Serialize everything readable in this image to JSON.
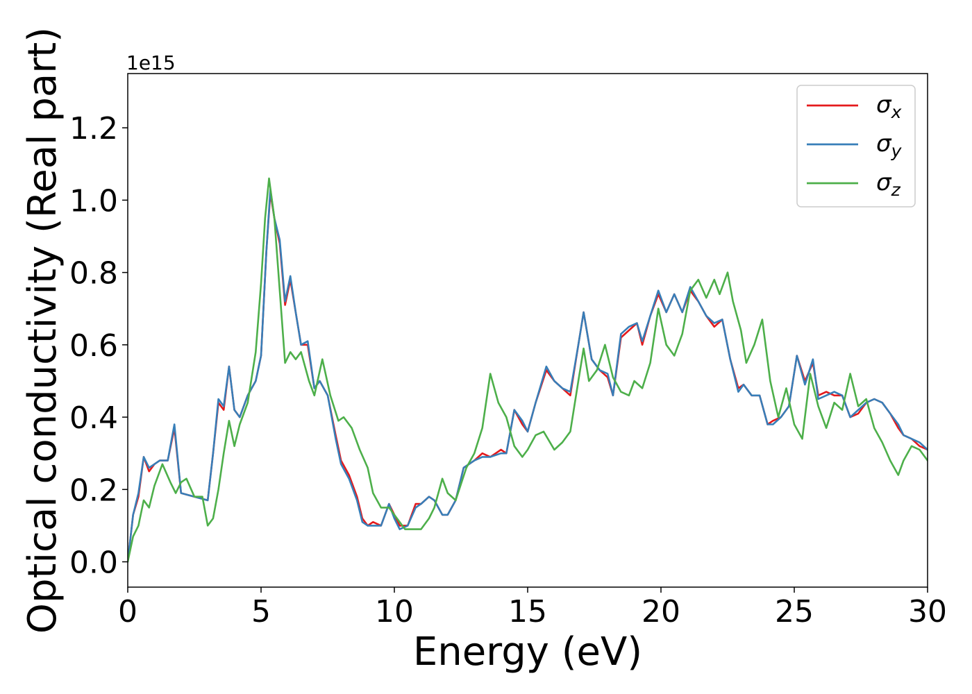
{
  "chart_data": {
    "type": "line",
    "xlabel": "Energy (eV)",
    "ylabel": "Optical conductivity (Real part)",
    "y_offset_label": "1e15",
    "xlim": [
      0,
      30
    ],
    "ylim": [
      -0.07,
      1.35
    ],
    "xticks": [
      0,
      5,
      10,
      15,
      20,
      25,
      30
    ],
    "xtick_labels": [
      "0",
      "5",
      "10",
      "15",
      "20",
      "25",
      "30"
    ],
    "yticks": [
      0.0,
      0.2,
      0.4,
      0.6,
      0.8,
      1.0,
      1.2
    ],
    "ytick_labels": [
      "0.0",
      "0.2",
      "0.4",
      "0.6",
      "0.8",
      "1.0",
      "1.2"
    ],
    "grid": false,
    "legend_position": "top-right",
    "series": [
      {
        "name": "σx",
        "legend_base": "σ",
        "legend_sub": "x",
        "color": "#e41a1c",
        "x": [
          0,
          0.2,
          0.4,
          0.6,
          0.8,
          1.0,
          1.2,
          1.5,
          1.75,
          2.0,
          2.5,
          3.0,
          3.2,
          3.4,
          3.6,
          3.8,
          4.0,
          4.2,
          4.5,
          4.8,
          5.0,
          5.2,
          5.35,
          5.5,
          5.7,
          5.9,
          6.1,
          6.3,
          6.5,
          6.75,
          7.0,
          7.2,
          7.5,
          7.8,
          8.0,
          8.3,
          8.6,
          8.8,
          9.0,
          9.2,
          9.5,
          9.8,
          10.0,
          10.2,
          10.5,
          10.8,
          11.0,
          11.3,
          11.5,
          11.8,
          12.0,
          12.3,
          12.6,
          13.0,
          13.3,
          13.6,
          14.0,
          14.2,
          14.5,
          14.8,
          15.0,
          15.3,
          15.7,
          16.0,
          16.3,
          16.6,
          16.9,
          17.1,
          17.4,
          17.7,
          18.0,
          18.2,
          18.5,
          18.8,
          19.1,
          19.3,
          19.6,
          19.9,
          20.2,
          20.5,
          20.8,
          21.1,
          21.4,
          21.7,
          22.0,
          22.3,
          22.6,
          22.9,
          23.1,
          23.4,
          23.7,
          24.0,
          24.2,
          24.5,
          24.8,
          25.1,
          25.4,
          25.7,
          25.9,
          26.2,
          26.5,
          26.8,
          27.1,
          27.4,
          27.7,
          28.0,
          28.3,
          28.6,
          28.9,
          29.1,
          29.4,
          29.7,
          30.0
        ],
        "y": [
          0.0,
          0.13,
          0.18,
          0.29,
          0.25,
          0.27,
          0.28,
          0.28,
          0.37,
          0.19,
          0.18,
          0.17,
          0.3,
          0.44,
          0.42,
          0.54,
          0.42,
          0.4,
          0.46,
          0.5,
          0.57,
          0.86,
          1.02,
          0.95,
          0.88,
          0.71,
          0.78,
          0.69,
          0.6,
          0.6,
          0.48,
          0.5,
          0.46,
          0.35,
          0.28,
          0.24,
          0.18,
          0.12,
          0.1,
          0.11,
          0.1,
          0.16,
          0.13,
          0.1,
          0.1,
          0.16,
          0.16,
          0.18,
          0.17,
          0.13,
          0.13,
          0.17,
          0.26,
          0.28,
          0.3,
          0.29,
          0.31,
          0.3,
          0.42,
          0.38,
          0.36,
          0.44,
          0.53,
          0.5,
          0.48,
          0.46,
          0.6,
          0.69,
          0.56,
          0.53,
          0.51,
          0.46,
          0.62,
          0.64,
          0.66,
          0.6,
          0.68,
          0.74,
          0.69,
          0.74,
          0.69,
          0.75,
          0.72,
          0.68,
          0.65,
          0.67,
          0.56,
          0.48,
          0.49,
          0.46,
          0.46,
          0.38,
          0.39,
          0.4,
          0.43,
          0.57,
          0.5,
          0.55,
          0.46,
          0.47,
          0.46,
          0.46,
          0.4,
          0.41,
          0.44,
          0.45,
          0.44,
          0.41,
          0.37,
          0.35,
          0.34,
          0.32,
          0.31
        ]
      },
      {
        "name": "σy",
        "legend_base": "σ",
        "legend_sub": "y",
        "color": "#377eb8",
        "x": [
          0,
          0.2,
          0.4,
          0.6,
          0.8,
          1.0,
          1.2,
          1.5,
          1.75,
          2.0,
          2.5,
          3.0,
          3.2,
          3.4,
          3.6,
          3.8,
          4.0,
          4.2,
          4.5,
          4.8,
          5.0,
          5.2,
          5.35,
          5.5,
          5.7,
          5.9,
          6.1,
          6.3,
          6.5,
          6.75,
          7.0,
          7.2,
          7.5,
          7.8,
          8.0,
          8.3,
          8.6,
          8.8,
          9.0,
          9.2,
          9.5,
          9.8,
          10.0,
          10.2,
          10.5,
          10.8,
          11.0,
          11.3,
          11.5,
          11.8,
          12.0,
          12.3,
          12.6,
          13.0,
          13.3,
          13.6,
          14.0,
          14.2,
          14.5,
          14.8,
          15.0,
          15.3,
          15.7,
          16.0,
          16.3,
          16.6,
          16.9,
          17.1,
          17.4,
          17.7,
          18.0,
          18.2,
          18.5,
          18.8,
          19.1,
          19.3,
          19.6,
          19.9,
          20.2,
          20.5,
          20.8,
          21.1,
          21.4,
          21.7,
          22.0,
          22.3,
          22.6,
          22.9,
          23.1,
          23.4,
          23.7,
          24.0,
          24.2,
          24.5,
          24.8,
          25.1,
          25.4,
          25.7,
          25.9,
          26.2,
          26.5,
          26.8,
          27.1,
          27.4,
          27.7,
          28.0,
          28.3,
          28.6,
          28.9,
          29.1,
          29.4,
          29.7,
          30.0
        ],
        "y": [
          0.0,
          0.13,
          0.19,
          0.29,
          0.26,
          0.27,
          0.28,
          0.28,
          0.38,
          0.19,
          0.18,
          0.17,
          0.3,
          0.45,
          0.43,
          0.54,
          0.42,
          0.4,
          0.46,
          0.5,
          0.57,
          0.86,
          1.03,
          0.95,
          0.89,
          0.72,
          0.79,
          0.69,
          0.6,
          0.61,
          0.48,
          0.5,
          0.46,
          0.34,
          0.27,
          0.23,
          0.17,
          0.11,
          0.1,
          0.1,
          0.1,
          0.16,
          0.12,
          0.09,
          0.1,
          0.15,
          0.16,
          0.18,
          0.17,
          0.13,
          0.13,
          0.17,
          0.26,
          0.28,
          0.29,
          0.29,
          0.3,
          0.3,
          0.42,
          0.39,
          0.36,
          0.44,
          0.54,
          0.5,
          0.48,
          0.47,
          0.6,
          0.69,
          0.56,
          0.53,
          0.52,
          0.46,
          0.63,
          0.65,
          0.66,
          0.61,
          0.68,
          0.75,
          0.69,
          0.74,
          0.69,
          0.76,
          0.72,
          0.68,
          0.66,
          0.67,
          0.56,
          0.47,
          0.49,
          0.46,
          0.46,
          0.38,
          0.38,
          0.4,
          0.43,
          0.57,
          0.49,
          0.56,
          0.45,
          0.46,
          0.47,
          0.46,
          0.4,
          0.42,
          0.44,
          0.45,
          0.44,
          0.41,
          0.38,
          0.35,
          0.34,
          0.33,
          0.31
        ]
      },
      {
        "name": "σz",
        "legend_base": "σ",
        "legend_sub": "z",
        "color": "#4daf4a",
        "x": [
          0,
          0.2,
          0.4,
          0.6,
          0.8,
          1.0,
          1.3,
          1.6,
          1.8,
          2.0,
          2.2,
          2.5,
          2.8,
          3.0,
          3.2,
          3.4,
          3.6,
          3.8,
          4.0,
          4.2,
          4.5,
          4.8,
          5.0,
          5.15,
          5.3,
          5.5,
          5.7,
          5.9,
          6.1,
          6.3,
          6.5,
          6.8,
          7.0,
          7.3,
          7.6,
          7.9,
          8.1,
          8.4,
          8.7,
          9.0,
          9.2,
          9.5,
          9.8,
          10.1,
          10.4,
          10.7,
          11.0,
          11.3,
          11.5,
          11.8,
          12.0,
          12.3,
          12.7,
          13.0,
          13.3,
          13.6,
          13.9,
          14.2,
          14.5,
          14.8,
          15.0,
          15.3,
          15.6,
          16.0,
          16.3,
          16.6,
          16.9,
          17.1,
          17.3,
          17.6,
          17.9,
          18.2,
          18.5,
          18.8,
          19.0,
          19.3,
          19.6,
          19.9,
          20.2,
          20.5,
          20.8,
          21.1,
          21.4,
          21.7,
          22.0,
          22.2,
          22.5,
          22.7,
          23.0,
          23.2,
          23.5,
          23.8,
          24.1,
          24.4,
          24.7,
          25.0,
          25.3,
          25.6,
          25.9,
          26.2,
          26.5,
          26.8,
          27.1,
          27.4,
          27.7,
          28.0,
          28.3,
          28.6,
          28.9,
          29.1,
          29.4,
          29.7,
          30.0
        ],
        "y": [
          0.0,
          0.07,
          0.1,
          0.17,
          0.15,
          0.21,
          0.27,
          0.22,
          0.19,
          0.22,
          0.23,
          0.18,
          0.18,
          0.1,
          0.12,
          0.2,
          0.3,
          0.39,
          0.32,
          0.38,
          0.44,
          0.58,
          0.77,
          0.95,
          1.06,
          0.95,
          0.75,
          0.55,
          0.58,
          0.56,
          0.58,
          0.5,
          0.46,
          0.56,
          0.46,
          0.39,
          0.4,
          0.37,
          0.31,
          0.26,
          0.19,
          0.15,
          0.15,
          0.12,
          0.09,
          0.09,
          0.09,
          0.12,
          0.15,
          0.23,
          0.19,
          0.17,
          0.26,
          0.3,
          0.37,
          0.52,
          0.44,
          0.4,
          0.32,
          0.29,
          0.31,
          0.35,
          0.36,
          0.31,
          0.33,
          0.36,
          0.5,
          0.59,
          0.5,
          0.53,
          0.6,
          0.51,
          0.47,
          0.46,
          0.5,
          0.48,
          0.55,
          0.7,
          0.6,
          0.57,
          0.63,
          0.75,
          0.78,
          0.73,
          0.78,
          0.74,
          0.8,
          0.72,
          0.64,
          0.55,
          0.6,
          0.67,
          0.5,
          0.4,
          0.48,
          0.38,
          0.34,
          0.52,
          0.43,
          0.37,
          0.44,
          0.42,
          0.52,
          0.43,
          0.45,
          0.37,
          0.33,
          0.28,
          0.24,
          0.28,
          0.32,
          0.31,
          0.28
        ]
      }
    ]
  }
}
